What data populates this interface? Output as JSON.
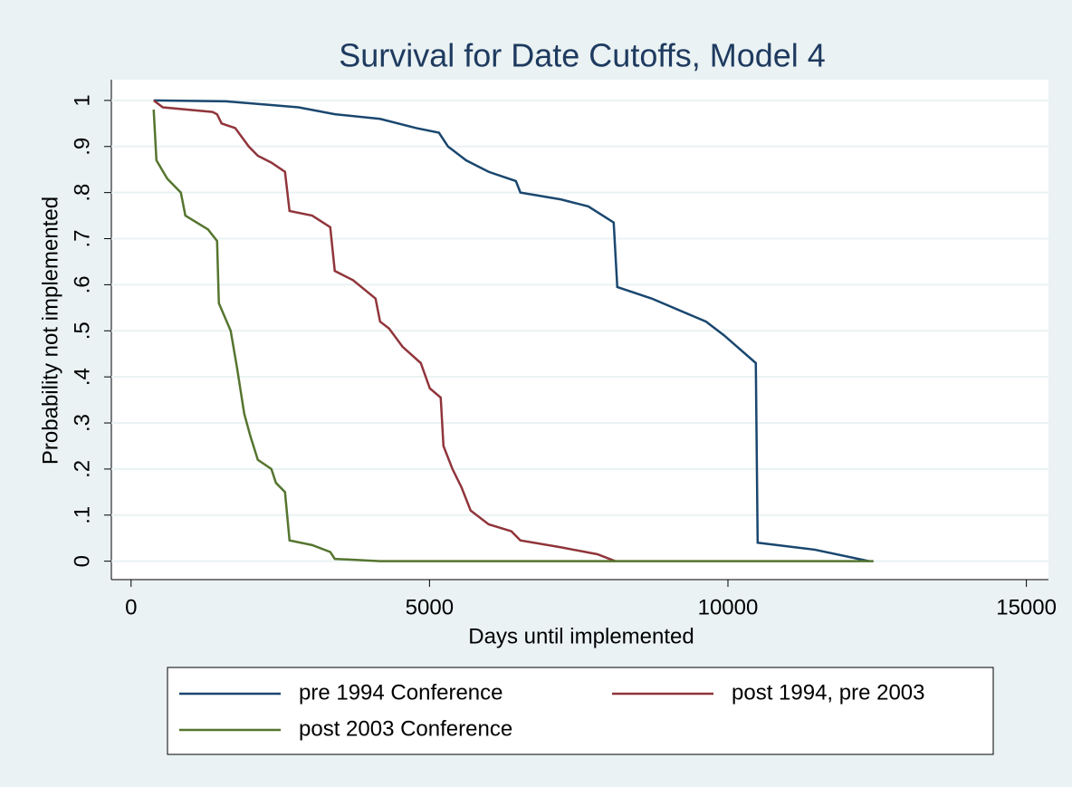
{
  "chart_data": {
    "type": "line",
    "title": "Survival for Date Cutoffs, Model 4",
    "xlabel": "Days until implemented",
    "ylabel": "Probability not implemented",
    "xlim": [
      -330,
      15370
    ],
    "ylim": [
      -0.04,
      1.045
    ],
    "xticks": [
      0,
      5000,
      10000,
      15000
    ],
    "yticks": [
      0,
      {
        "value": 0.1,
        "label": ".1"
      },
      {
        "value": 0.2,
        "label": ".2"
      },
      {
        "value": 0.3,
        "label": ".3"
      },
      {
        "value": 0.4,
        "label": ".4"
      },
      {
        "value": 0.5,
        "label": ".5"
      },
      {
        "value": 0.6,
        "label": ".6"
      },
      {
        "value": 0.7,
        "label": ".7"
      },
      {
        "value": 0.8,
        "label": ".8"
      },
      {
        "value": 0.9,
        "label": ".9"
      },
      1
    ],
    "grid": true,
    "legend": "bottom",
    "series": [
      {
        "name": "pre 1994 Conference",
        "color": "#1a476f",
        "x": [
          379,
          1593,
          2351,
          2806,
          3413,
          4172,
          4779,
          5158,
          5310,
          5613,
          5992,
          6447,
          6523,
          7206,
          7661,
          8086,
          8146,
          8723,
          9633,
          9936,
          10467,
          10498,
          11453,
          12364
        ],
        "values": [
          1.0,
          0.998,
          0.99,
          0.985,
          0.97,
          0.96,
          0.94,
          0.93,
          0.9,
          0.87,
          0.845,
          0.825,
          0.8,
          0.785,
          0.77,
          0.735,
          0.595,
          0.57,
          0.52,
          0.49,
          0.43,
          0.04,
          0.025,
          0.0
        ]
      },
      {
        "name": "post 1994, pre 2003",
        "color": "#90353b",
        "x": [
          379,
          531,
          1365,
          1441,
          1517,
          1745,
          1972,
          2124,
          2352,
          2579,
          2655,
          3034,
          3337,
          3413,
          3717,
          4096,
          4172,
          4323,
          4551,
          4854,
          5006,
          5188,
          5234,
          5385,
          5537,
          5689,
          5992,
          6371,
          6523,
          7206,
          7813,
          8116
        ],
        "values": [
          1.0,
          0.985,
          0.975,
          0.97,
          0.95,
          0.94,
          0.9,
          0.88,
          0.865,
          0.845,
          0.76,
          0.75,
          0.725,
          0.63,
          0.61,
          0.57,
          0.52,
          0.505,
          0.465,
          0.43,
          0.375,
          0.355,
          0.25,
          0.2,
          0.16,
          0.11,
          0.08,
          0.065,
          0.045,
          0.03,
          0.015,
          0.0
        ]
      },
      {
        "name": "post 2003 Conference",
        "color": "#55752f",
        "x": [
          379,
          425,
          607,
          834,
          910,
          1289,
          1441,
          1471,
          1669,
          1775,
          1896,
          2002,
          2124,
          2351,
          2427,
          2579,
          2655,
          3034,
          3337,
          3413,
          4172,
          12439
        ],
        "values": [
          0.98,
          0.87,
          0.83,
          0.8,
          0.75,
          0.72,
          0.695,
          0.56,
          0.5,
          0.42,
          0.32,
          0.27,
          0.22,
          0.2,
          0.17,
          0.15,
          0.045,
          0.035,
          0.02,
          0.005,
          0.0,
          0.0
        ]
      }
    ]
  }
}
